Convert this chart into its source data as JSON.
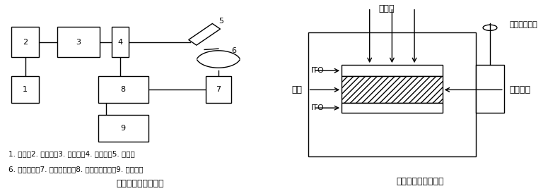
{
  "fig_width": 7.92,
  "fig_height": 2.71,
  "bg_color": "#ffffff",
  "left_title": "表面光电压谱仪框图",
  "right_title": "光电压池结构示意图",
  "caption_line1": "1. 光源，2. 单色仪，3. 斩波器，4. 反射镜，5. 透镜，",
  "caption_line2": "6. 光电压池，7. 锁相放大器，8. 微机处理系统，9. 稳压电源"
}
